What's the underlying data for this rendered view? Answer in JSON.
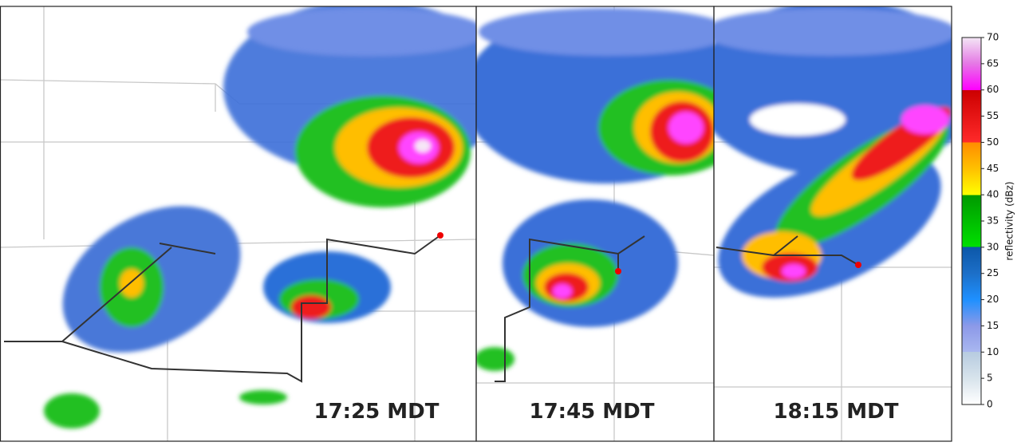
{
  "panels": [
    {
      "time": "17:25 MDT"
    },
    {
      "time": "17:45 MDT"
    },
    {
      "time": "18:15 MDT"
    }
  ],
  "colorbar": {
    "label": "reflectivity (dBz)",
    "range": [
      0,
      70
    ],
    "ticks": [
      0,
      5,
      10,
      15,
      20,
      25,
      30,
      35,
      40,
      45,
      50,
      55,
      60,
      65,
      70
    ]
  }
}
